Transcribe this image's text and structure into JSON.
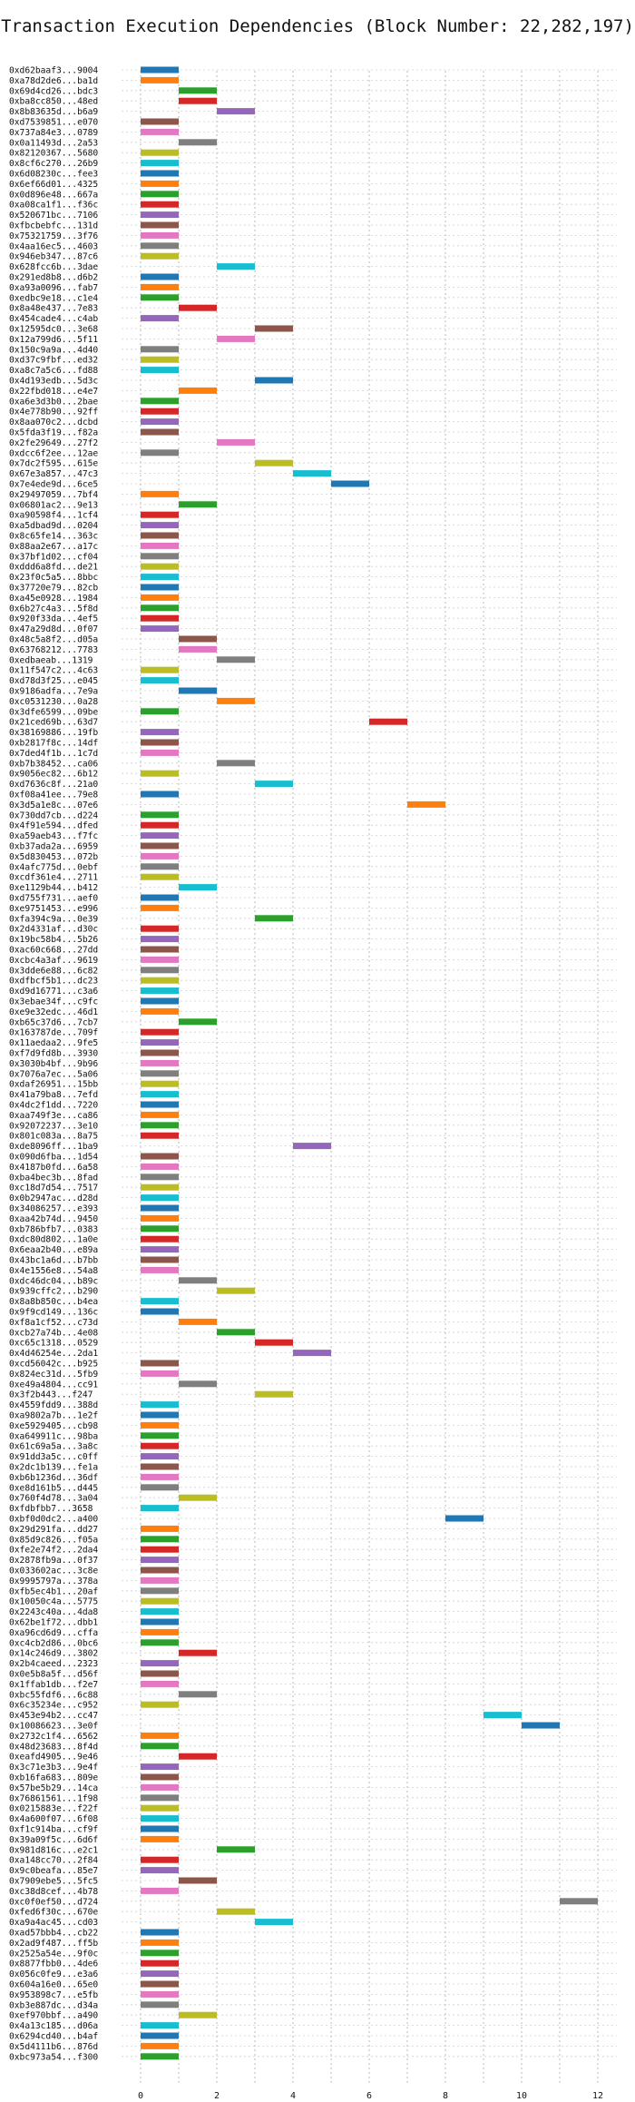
{
  "chart_data": {
    "type": "bar",
    "orientation": "horizontal-gantt",
    "title": "Transaction Execution Dependencies (Block Number: 22,282,197)",
    "xlabel": "",
    "ylabel": "",
    "xlim": [
      -0.5,
      12.5
    ],
    "xticks": [
      0,
      2,
      4,
      6,
      8,
      10,
      12
    ],
    "grid": "dotted",
    "colors": [
      "#1f77b4",
      "#ff7f0e",
      "#2ca02c",
      "#d62728",
      "#9467bd",
      "#8c564b",
      "#e377c2",
      "#7f7f7f",
      "#bcbd22",
      "#17becf"
    ],
    "transactions": [
      {
        "hash": "0xd62baaf3...9004",
        "start": 0,
        "end": 1
      },
      {
        "hash": "0xa78d2de6...ba1d",
        "start": 0,
        "end": 1
      },
      {
        "hash": "0x69d4cd26...bdc3",
        "start": 1,
        "end": 2
      },
      {
        "hash": "0xba8cc850...48ed",
        "start": 1,
        "end": 2
      },
      {
        "hash": "0x8b83635d...b6a9",
        "start": 2,
        "end": 3
      },
      {
        "hash": "0xd7539851...e070",
        "start": 0,
        "end": 1
      },
      {
        "hash": "0x737a84e3...0789",
        "start": 0,
        "end": 1
      },
      {
        "hash": "0x0a11493d...2a53",
        "start": 1,
        "end": 2
      },
      {
        "hash": "0x82120367...5680",
        "start": 0,
        "end": 1
      },
      {
        "hash": "0x8cf6c270...26b9",
        "start": 0,
        "end": 1
      },
      {
        "hash": "0x6d08230c...fee3",
        "start": 0,
        "end": 1
      },
      {
        "hash": "0x6ef66d01...4325",
        "start": 0,
        "end": 1
      },
      {
        "hash": "0x0d896e48...667a",
        "start": 0,
        "end": 1
      },
      {
        "hash": "0xa08ca1f1...f36c",
        "start": 0,
        "end": 1
      },
      {
        "hash": "0x520671bc...7106",
        "start": 0,
        "end": 1
      },
      {
        "hash": "0xfbcbebfc...131d",
        "start": 0,
        "end": 1
      },
      {
        "hash": "0x75321759...3f76",
        "start": 0,
        "end": 1
      },
      {
        "hash": "0x4aa16ec5...4603",
        "start": 0,
        "end": 1
      },
      {
        "hash": "0x946eb347...87c6",
        "start": 0,
        "end": 1
      },
      {
        "hash": "0x628fcc6b...3dae",
        "start": 2,
        "end": 3
      },
      {
        "hash": "0x291ed8b8...d6b2",
        "start": 0,
        "end": 1
      },
      {
        "hash": "0xa93a0096...fab7",
        "start": 0,
        "end": 1
      },
      {
        "hash": "0xedbc9e18...c1e4",
        "start": 0,
        "end": 1
      },
      {
        "hash": "0x8a48e437...7e83",
        "start": 1,
        "end": 2
      },
      {
        "hash": "0x454cade4...c4ab",
        "start": 0,
        "end": 1
      },
      {
        "hash": "0x12595dc0...3e68",
        "start": 3,
        "end": 4
      },
      {
        "hash": "0x12a799d6...5f11",
        "start": 2,
        "end": 3
      },
      {
        "hash": "0x150c9a9a...4d40",
        "start": 0,
        "end": 1
      },
      {
        "hash": "0xd37c9fbf...ed32",
        "start": 0,
        "end": 1
      },
      {
        "hash": "0xa8c7a5c6...fd88",
        "start": 0,
        "end": 1
      },
      {
        "hash": "0x4d193edb...5d3c",
        "start": 3,
        "end": 4
      },
      {
        "hash": "0x22fbd018...e4e7",
        "start": 1,
        "end": 2
      },
      {
        "hash": "0xa6e3d3b0...2bae",
        "start": 0,
        "end": 1
      },
      {
        "hash": "0x4e778b90...92ff",
        "start": 0,
        "end": 1
      },
      {
        "hash": "0x8aa070c2...dcbd",
        "start": 0,
        "end": 1
      },
      {
        "hash": "0x5fda3f19...f82a",
        "start": 0,
        "end": 1
      },
      {
        "hash": "0x2fe29649...27f2",
        "start": 2,
        "end": 3
      },
      {
        "hash": "0xdcc6f2ee...12ae",
        "start": 0,
        "end": 1
      },
      {
        "hash": "0x7dc2f595...615e",
        "start": 3,
        "end": 4
      },
      {
        "hash": "0x67e3a857...47c3",
        "start": 4,
        "end": 5
      },
      {
        "hash": "0x7e4ede9d...6ce5",
        "start": 5,
        "end": 6
      },
      {
        "hash": "0x29497059...7bf4",
        "start": 0,
        "end": 1
      },
      {
        "hash": "0x06801ac2...9e13",
        "start": 1,
        "end": 2
      },
      {
        "hash": "0xa90598f4...1cf4",
        "start": 0,
        "end": 1
      },
      {
        "hash": "0xa5dbad9d...0204",
        "start": 0,
        "end": 1
      },
      {
        "hash": "0x8c65fe14...363c",
        "start": 0,
        "end": 1
      },
      {
        "hash": "0x88aa2e67...a17c",
        "start": 0,
        "end": 1
      },
      {
        "hash": "0x37bf1d02...cf04",
        "start": 0,
        "end": 1
      },
      {
        "hash": "0xddd6a8fd...de21",
        "start": 0,
        "end": 1
      },
      {
        "hash": "0x23f0c5a5...8bbc",
        "start": 0,
        "end": 1
      },
      {
        "hash": "0x37720e79...82cb",
        "start": 0,
        "end": 1
      },
      {
        "hash": "0xa45e0928...1984",
        "start": 0,
        "end": 1
      },
      {
        "hash": "0x6b27c4a3...5f8d",
        "start": 0,
        "end": 1
      },
      {
        "hash": "0x920f33da...4ef5",
        "start": 0,
        "end": 1
      },
      {
        "hash": "0x47a29d8d...0f07",
        "start": 0,
        "end": 1
      },
      {
        "hash": "0x48c5a8f2...d05a",
        "start": 1,
        "end": 2
      },
      {
        "hash": "0x63768212...7783",
        "start": 1,
        "end": 2
      },
      {
        "hash": "0xedbaeab...1319",
        "start": 2,
        "end": 3
      },
      {
        "hash": "0x11f547c2...4c63",
        "start": 0,
        "end": 1
      },
      {
        "hash": "0xd78d3f25...e045",
        "start": 0,
        "end": 1
      },
      {
        "hash": "0x9186adfa...7e9a",
        "start": 1,
        "end": 2
      },
      {
        "hash": "0xc0531230...0a28",
        "start": 2,
        "end": 3
      },
      {
        "hash": "0x3dfe6599...09be",
        "start": 0,
        "end": 1
      },
      {
        "hash": "0x21ced69b...63d7",
        "start": 6,
        "end": 7
      },
      {
        "hash": "0x38169886...19fb",
        "start": 0,
        "end": 1
      },
      {
        "hash": "0xb2817f8c...14df",
        "start": 0,
        "end": 1
      },
      {
        "hash": "0x7ded4f1b...1c7d",
        "start": 0,
        "end": 1
      },
      {
        "hash": "0xb7b38452...ca06",
        "start": 2,
        "end": 3
      },
      {
        "hash": "0x9056ec82...6b12",
        "start": 0,
        "end": 1
      },
      {
        "hash": "0xd7636c8f...21a0",
        "start": 3,
        "end": 4
      },
      {
        "hash": "0xf08a41ee...79e8",
        "start": 0,
        "end": 1
      },
      {
        "hash": "0x3d5a1e8c...07e6",
        "start": 7,
        "end": 8
      },
      {
        "hash": "0x730dd7cb...d224",
        "start": 0,
        "end": 1
      },
      {
        "hash": "0x4f91e594...dfed",
        "start": 0,
        "end": 1
      },
      {
        "hash": "0xa59aeb43...f7fc",
        "start": 0,
        "end": 1
      },
      {
        "hash": "0xb37ada2a...6959",
        "start": 0,
        "end": 1
      },
      {
        "hash": "0x5d830453...072b",
        "start": 0,
        "end": 1
      },
      {
        "hash": "0x4afc775d...0ebf",
        "start": 0,
        "end": 1
      },
      {
        "hash": "0xcdf361e4...2711",
        "start": 0,
        "end": 1
      },
      {
        "hash": "0xe1129b44...b412",
        "start": 1,
        "end": 2
      },
      {
        "hash": "0xd755f731...aef0",
        "start": 0,
        "end": 1
      },
      {
        "hash": "0xe9751453...e996",
        "start": 0,
        "end": 1
      },
      {
        "hash": "0xfa394c9a...0e39",
        "start": 3,
        "end": 4
      },
      {
        "hash": "0x2d4331af...d30c",
        "start": 0,
        "end": 1
      },
      {
        "hash": "0x19bc58b4...5b26",
        "start": 0,
        "end": 1
      },
      {
        "hash": "0xac60c668...27dd",
        "start": 0,
        "end": 1
      },
      {
        "hash": "0xcbc4a3af...9619",
        "start": 0,
        "end": 1
      },
      {
        "hash": "0x3dde6e88...6c82",
        "start": 0,
        "end": 1
      },
      {
        "hash": "0xdfbcf5b1...dc23",
        "start": 0,
        "end": 1
      },
      {
        "hash": "0xd9d16771...c3a6",
        "start": 0,
        "end": 1
      },
      {
        "hash": "0x3ebae34f...c9fc",
        "start": 0,
        "end": 1
      },
      {
        "hash": "0xe9e32edc...46d1",
        "start": 0,
        "end": 1
      },
      {
        "hash": "0xb65c37d6...7cb7",
        "start": 1,
        "end": 2
      },
      {
        "hash": "0x163787de...709f",
        "start": 0,
        "end": 1
      },
      {
        "hash": "0x11aedaa2...9fe5",
        "start": 0,
        "end": 1
      },
      {
        "hash": "0xf7d9fd8b...3930",
        "start": 0,
        "end": 1
      },
      {
        "hash": "0x3030b4bf...9b96",
        "start": 0,
        "end": 1
      },
      {
        "hash": "0x7076a7ec...5a06",
        "start": 0,
        "end": 1
      },
      {
        "hash": "0xdaf26951...15bb",
        "start": 0,
        "end": 1
      },
      {
        "hash": "0x41a79ba8...7efd",
        "start": 0,
        "end": 1
      },
      {
        "hash": "0x4dc2f1dd...7220",
        "start": 0,
        "end": 1
      },
      {
        "hash": "0xaa749f3e...ca86",
        "start": 0,
        "end": 1
      },
      {
        "hash": "0x92072237...3e10",
        "start": 0,
        "end": 1
      },
      {
        "hash": "0x801c083a...8a75",
        "start": 0,
        "end": 1
      },
      {
        "hash": "0xde8096ff...1ba9",
        "start": 4,
        "end": 5
      },
      {
        "hash": "0x090d6fba...1d54",
        "start": 0,
        "end": 1
      },
      {
        "hash": "0x4187b0fd...6a58",
        "start": 0,
        "end": 1
      },
      {
        "hash": "0xba4bec3b...8fad",
        "start": 0,
        "end": 1
      },
      {
        "hash": "0xc18d7d54...7517",
        "start": 0,
        "end": 1
      },
      {
        "hash": "0x0b2947ac...d28d",
        "start": 0,
        "end": 1
      },
      {
        "hash": "0x34086257...e393",
        "start": 0,
        "end": 1
      },
      {
        "hash": "0xaa42b74d...9450",
        "start": 0,
        "end": 1
      },
      {
        "hash": "0xb786bfb7...0383",
        "start": 0,
        "end": 1
      },
      {
        "hash": "0xdc80d802...1a0e",
        "start": 0,
        "end": 1
      },
      {
        "hash": "0x6eaa2b40...e89a",
        "start": 0,
        "end": 1
      },
      {
        "hash": "0x43bc1a6d...b7bb",
        "start": 0,
        "end": 1
      },
      {
        "hash": "0x4e1556e8...54a8",
        "start": 0,
        "end": 1
      },
      {
        "hash": "0xdc46dc04...b89c",
        "start": 1,
        "end": 2
      },
      {
        "hash": "0x939cffc2...b290",
        "start": 2,
        "end": 3
      },
      {
        "hash": "0x8a8b850c...b4ea",
        "start": 0,
        "end": 1
      },
      {
        "hash": "0x9f9cd149...136c",
        "start": 0,
        "end": 1
      },
      {
        "hash": "0xf8a1cf52...c73d",
        "start": 1,
        "end": 2
      },
      {
        "hash": "0xcb27a74b...4e08",
        "start": 2,
        "end": 3
      },
      {
        "hash": "0xc65c1318...0529",
        "start": 3,
        "end": 4
      },
      {
        "hash": "0x4d46254e...2da1",
        "start": 4,
        "end": 5
      },
      {
        "hash": "0xcd56042c...b925",
        "start": 0,
        "end": 1
      },
      {
        "hash": "0x824ec31d...5fb9",
        "start": 0,
        "end": 1
      },
      {
        "hash": "0xe49a4804...cc91",
        "start": 1,
        "end": 2
      },
      {
        "hash": "0x3f2b443...f247",
        "start": 3,
        "end": 4
      },
      {
        "hash": "0x4559fdd9...388d",
        "start": 0,
        "end": 1
      },
      {
        "hash": "0xa9802a7b...1e2f",
        "start": 0,
        "end": 1
      },
      {
        "hash": "0xe5929405...cb98",
        "start": 0,
        "end": 1
      },
      {
        "hash": "0xa649911c...98ba",
        "start": 0,
        "end": 1
      },
      {
        "hash": "0x61c69a5a...3a8c",
        "start": 0,
        "end": 1
      },
      {
        "hash": "0x91dd3a5c...c0ff",
        "start": 0,
        "end": 1
      },
      {
        "hash": "0x2dc1b139...fe1a",
        "start": 0,
        "end": 1
      },
      {
        "hash": "0xb6b1236d...36df",
        "start": 0,
        "end": 1
      },
      {
        "hash": "0xe8d161b5...d445",
        "start": 0,
        "end": 1
      },
      {
        "hash": "0x760f4d78...3a04",
        "start": 1,
        "end": 2
      },
      {
        "hash": "0xfdbfbb7...3658",
        "start": 0,
        "end": 1
      },
      {
        "hash": "0xbf0d0dc2...a400",
        "start": 8,
        "end": 9
      },
      {
        "hash": "0x29d291fa...dd27",
        "start": 0,
        "end": 1
      },
      {
        "hash": "0x85d9c826...f05a",
        "start": 0,
        "end": 1
      },
      {
        "hash": "0xfe2e74f2...2da4",
        "start": 0,
        "end": 1
      },
      {
        "hash": "0x2878fb9a...0f37",
        "start": 0,
        "end": 1
      },
      {
        "hash": "0x033602ac...3c8e",
        "start": 0,
        "end": 1
      },
      {
        "hash": "0x9995797a...378a",
        "start": 0,
        "end": 1
      },
      {
        "hash": "0xfb5ec4b1...20af",
        "start": 0,
        "end": 1
      },
      {
        "hash": "0x10050c4a...5775",
        "start": 0,
        "end": 1
      },
      {
        "hash": "0x2243c40a...4da8",
        "start": 0,
        "end": 1
      },
      {
        "hash": "0x62be1f72...dbb1",
        "start": 0,
        "end": 1
      },
      {
        "hash": "0xa96cd6d9...cffa",
        "start": 0,
        "end": 1
      },
      {
        "hash": "0xc4cb2d86...0bc6",
        "start": 0,
        "end": 1
      },
      {
        "hash": "0x14c246d9...3802",
        "start": 1,
        "end": 2
      },
      {
        "hash": "0x2b4caeed...2323",
        "start": 0,
        "end": 1
      },
      {
        "hash": "0x0e5b8a5f...d56f",
        "start": 0,
        "end": 1
      },
      {
        "hash": "0x1ffab1db...f2e7",
        "start": 0,
        "end": 1
      },
      {
        "hash": "0xbc55fdf6...6c88",
        "start": 1,
        "end": 2
      },
      {
        "hash": "0x6c35234e...c952",
        "start": 0,
        "end": 1
      },
      {
        "hash": "0x453e94b2...cc47",
        "start": 9,
        "end": 10
      },
      {
        "hash": "0x10086623...3e0f",
        "start": 10,
        "end": 11
      },
      {
        "hash": "0x2732c1f4...6562",
        "start": 0,
        "end": 1
      },
      {
        "hash": "0x48d23683...8f4d",
        "start": 0,
        "end": 1
      },
      {
        "hash": "0xeafd4905...9e46",
        "start": 1,
        "end": 2
      },
      {
        "hash": "0x3c71e3b3...9e4f",
        "start": 0,
        "end": 1
      },
      {
        "hash": "0xb16fa683...809e",
        "start": 0,
        "end": 1
      },
      {
        "hash": "0x57be5b29...14ca",
        "start": 0,
        "end": 1
      },
      {
        "hash": "0x76861561...1f98",
        "start": 0,
        "end": 1
      },
      {
        "hash": "0x0215883e...f22f",
        "start": 0,
        "end": 1
      },
      {
        "hash": "0x4a600f07...6f08",
        "start": 0,
        "end": 1
      },
      {
        "hash": "0xf1c914ba...cf9f",
        "start": 0,
        "end": 1
      },
      {
        "hash": "0x39a09f5c...6d6f",
        "start": 0,
        "end": 1
      },
      {
        "hash": "0x981d816c...e2c1",
        "start": 2,
        "end": 3
      },
      {
        "hash": "0xa148cc70...2f84",
        "start": 0,
        "end": 1
      },
      {
        "hash": "0x9c0beafa...85e7",
        "start": 0,
        "end": 1
      },
      {
        "hash": "0x7909ebe5...5fc5",
        "start": 1,
        "end": 2
      },
      {
        "hash": "0xc38d8cef...4b78",
        "start": 0,
        "end": 1
      },
      {
        "hash": "0xc0f0ef50...d724",
        "start": 11,
        "end": 12
      },
      {
        "hash": "0xfed6f30c...670e",
        "start": 2,
        "end": 3
      },
      {
        "hash": "0xa9a4ac45...cd03",
        "start": 3,
        "end": 4
      },
      {
        "hash": "0xad57bbb4...cb22",
        "start": 0,
        "end": 1
      },
      {
        "hash": "0x2ad9f487...ff5b",
        "start": 0,
        "end": 1
      },
      {
        "hash": "0x2525a54e...9f0c",
        "start": 0,
        "end": 1
      },
      {
        "hash": "0x8877fbb0...4de6",
        "start": 0,
        "end": 1
      },
      {
        "hash": "0x056c0fe9...e3a6",
        "start": 0,
        "end": 1
      },
      {
        "hash": "0x604a16e0...65e0",
        "start": 0,
        "end": 1
      },
      {
        "hash": "0x953898c7...e5fb",
        "start": 0,
        "end": 1
      },
      {
        "hash": "0xb3e887dc...d34a",
        "start": 0,
        "end": 1
      },
      {
        "hash": "0xef970bbf...a490",
        "start": 1,
        "end": 2
      },
      {
        "hash": "0x4a13c185...d06a",
        "start": 0,
        "end": 1
      },
      {
        "hash": "0x6294cd40...b4af",
        "start": 0,
        "end": 1
      },
      {
        "hash": "0x5d4111b6...876d",
        "start": 0,
        "end": 1
      },
      {
        "hash": "0xbc973a54...f300",
        "start": 0,
        "end": 1
      }
    ]
  }
}
